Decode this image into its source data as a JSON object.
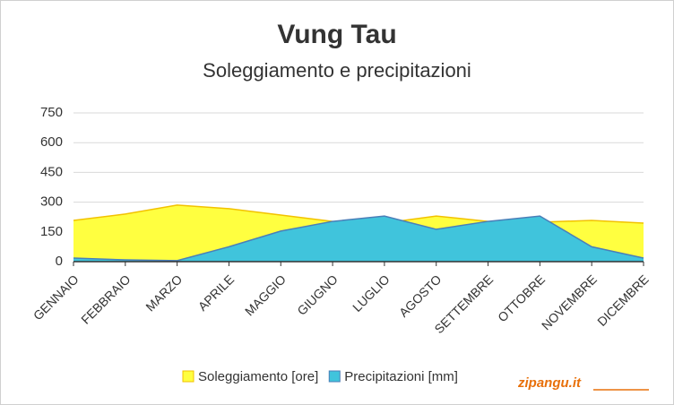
{
  "chart_data": {
    "type": "area",
    "title": "Vung Tau",
    "subtitle": "Soleggiamento e precipitazioni",
    "categories": [
      "GENNAIO",
      "FEBBRAIO",
      "MARZO",
      "APRILE",
      "MAGGIO",
      "GIUGNO",
      "LUGLIO",
      "AGOSTO",
      "SETTEMBRE",
      "OTTOBRE",
      "NOVEMBRE",
      "DICEMBRE"
    ],
    "series": [
      {
        "name": "Soleggiamento [ore]",
        "color": "#ffff40",
        "stroke": "#f2c200",
        "values": [
          208,
          240,
          285,
          267,
          235,
          203,
          195,
          230,
          203,
          199,
          208,
          194
        ]
      },
      {
        "name": "Precipitazioni [mm]",
        "color": "#40c4dc",
        "stroke": "#4a7fb8",
        "values": [
          18,
          9,
          5,
          75,
          154,
          203,
          230,
          163,
          203,
          230,
          75,
          18
        ]
      }
    ],
    "ylim": [
      0,
      750
    ],
    "yticks": [
      0,
      150,
      300,
      450,
      600,
      750
    ],
    "grid": true,
    "watermark": "zipangu.it"
  }
}
